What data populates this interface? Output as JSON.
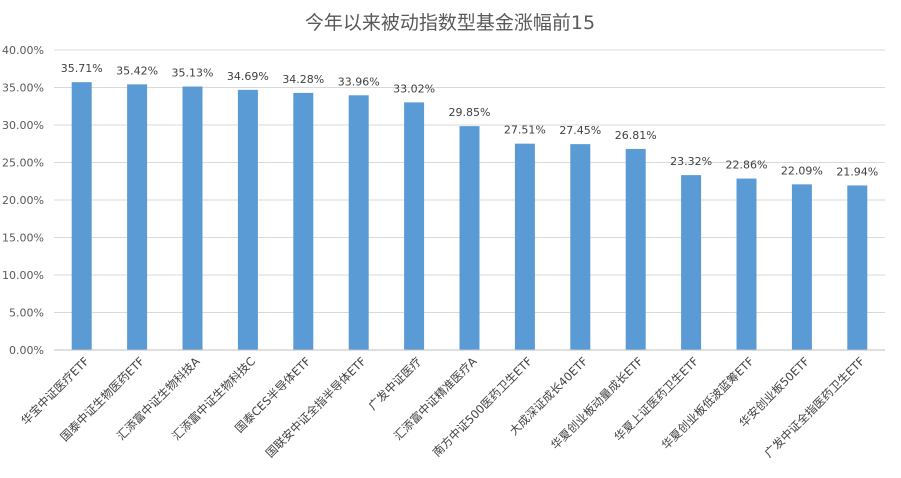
{
  "chart_data": {
    "type": "bar",
    "title": "今年以来被动指数型基金涨幅前15",
    "categories": [
      "华宝中证医疗ETF",
      "国泰中证生物医药ETF",
      "汇添富中证生物科技A",
      "汇添富中证生物科技C",
      "国泰CES半导体ETF",
      "国联安中证全指半导体ETF",
      "广发中证医疗",
      "汇添富中证精准医疗A",
      "南方中证500医药卫生ETF",
      "大成深证成长40ETF",
      "华夏创业板动量成长ETF",
      "华夏上证医药卫生ETF",
      "华夏创业板低波蓝筹ETF",
      "华安创业板50ETF",
      "广发中证全指医药卫生ETF"
    ],
    "values": [
      35.71,
      35.42,
      35.13,
      34.69,
      34.28,
      33.96,
      33.02,
      29.85,
      27.51,
      27.45,
      26.81,
      23.32,
      22.86,
      22.09,
      21.94
    ],
    "value_labels": [
      "35.71%",
      "35.42%",
      "35.13%",
      "34.69%",
      "34.28%",
      "33.96%",
      "33.02%",
      "29.85%",
      "27.51%",
      "27.45%",
      "26.81%",
      "23.32%",
      "22.86%",
      "22.09%",
      "21.94%"
    ],
    "ylim": [
      0,
      40
    ],
    "yticks": [
      "0.00%",
      "5.00%",
      "10.00%",
      "15.00%",
      "20.00%",
      "25.00%",
      "30.00%",
      "35.00%",
      "40.00%"
    ],
    "xlabel": "",
    "ylabel": "",
    "grid": true,
    "legend": "none",
    "bar_color": "#5b9bd5"
  }
}
